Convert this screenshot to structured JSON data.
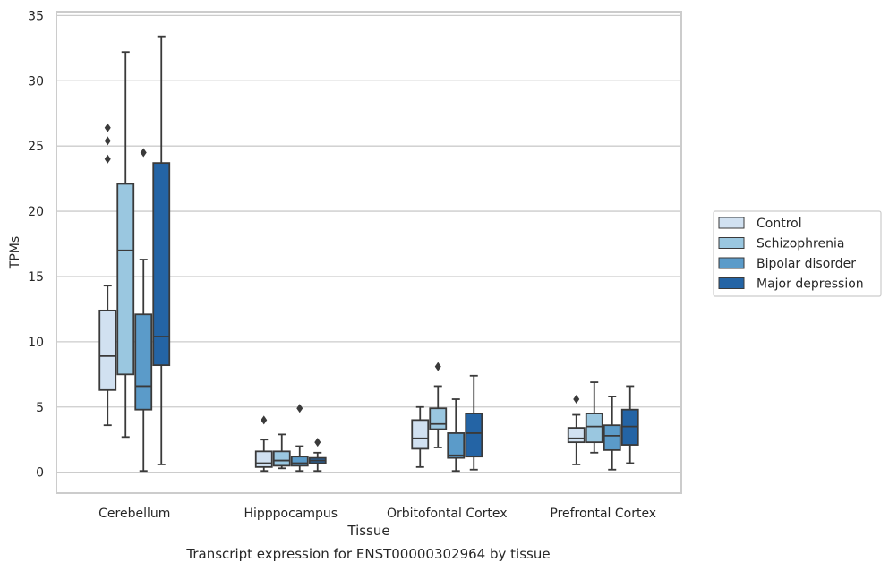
{
  "caption": "Transcript expression for ENST00000302964 by tissue",
  "chart_data": {
    "type": "box",
    "title": "",
    "xlabel": "Tissue",
    "ylabel": "TPMs",
    "ylim": [
      -1.6,
      35.3
    ],
    "yticks": [
      0,
      5,
      10,
      15,
      20,
      25,
      30,
      35
    ],
    "grid": true,
    "legend_position": "right, outside plot",
    "categories": [
      "Cerebellum",
      "Hipppocampus",
      "Orbitofontal Cortex",
      "Prefrontal Cortex"
    ],
    "series": [
      {
        "name": "Control",
        "color": "#d1e1f1",
        "boxes": [
          {
            "whislo": 3.6,
            "q1": 6.3,
            "med": 8.9,
            "q3": 12.4,
            "whishi": 14.3,
            "fliers": [
              24.0,
              25.4,
              26.4
            ]
          },
          {
            "whislo": 0.1,
            "q1": 0.4,
            "med": 0.7,
            "q3": 1.6,
            "whishi": 2.5,
            "fliers": [
              4.0
            ]
          },
          {
            "whislo": 0.4,
            "q1": 1.8,
            "med": 2.6,
            "q3": 4.0,
            "whishi": 5.0,
            "fliers": []
          },
          {
            "whislo": 0.6,
            "q1": 2.3,
            "med": 2.6,
            "q3": 3.4,
            "whishi": 4.4,
            "fliers": [
              5.6
            ]
          }
        ]
      },
      {
        "name": "Schizophrenia",
        "color": "#9ac7e0",
        "boxes": [
          {
            "whislo": 2.7,
            "q1": 7.5,
            "med": 17.0,
            "q3": 22.1,
            "whishi": 32.2,
            "fliers": []
          },
          {
            "whislo": 0.3,
            "q1": 0.5,
            "med": 0.9,
            "q3": 1.6,
            "whishi": 2.9,
            "fliers": []
          },
          {
            "whislo": 1.9,
            "q1": 3.3,
            "med": 3.7,
            "q3": 4.9,
            "whishi": 6.6,
            "fliers": [
              8.1
            ]
          },
          {
            "whislo": 1.5,
            "q1": 2.3,
            "med": 3.5,
            "q3": 4.5,
            "whishi": 6.9,
            "fliers": []
          }
        ]
      },
      {
        "name": "Bipolar disorder",
        "color": "#5b9bc9",
        "boxes": [
          {
            "whislo": 0.1,
            "q1": 4.8,
            "med": 6.6,
            "q3": 12.1,
            "whishi": 16.3,
            "fliers": [
              24.5
            ]
          },
          {
            "whislo": 0.1,
            "q1": 0.5,
            "med": 0.7,
            "q3": 1.2,
            "whishi": 2.0,
            "fliers": [
              4.9
            ]
          },
          {
            "whislo": 0.1,
            "q1": 1.1,
            "med": 1.3,
            "q3": 3.0,
            "whishi": 5.6,
            "fliers": []
          },
          {
            "whislo": 0.2,
            "q1": 1.7,
            "med": 2.8,
            "q3": 3.6,
            "whishi": 5.8,
            "fliers": []
          }
        ]
      },
      {
        "name": "Major depression",
        "color": "#2464a5",
        "boxes": [
          {
            "whislo": 0.6,
            "q1": 8.2,
            "med": 10.4,
            "q3": 23.7,
            "whishi": 33.4,
            "fliers": []
          },
          {
            "whislo": 0.1,
            "q1": 0.7,
            "med": 0.9,
            "q3": 1.1,
            "whishi": 1.5,
            "fliers": [
              2.3
            ]
          },
          {
            "whislo": 0.2,
            "q1": 1.2,
            "med": 3.0,
            "q3": 4.5,
            "whishi": 7.4,
            "fliers": []
          },
          {
            "whislo": 0.7,
            "q1": 2.1,
            "med": 3.5,
            "q3": 4.8,
            "whishi": 6.6,
            "fliers": []
          }
        ]
      }
    ]
  }
}
